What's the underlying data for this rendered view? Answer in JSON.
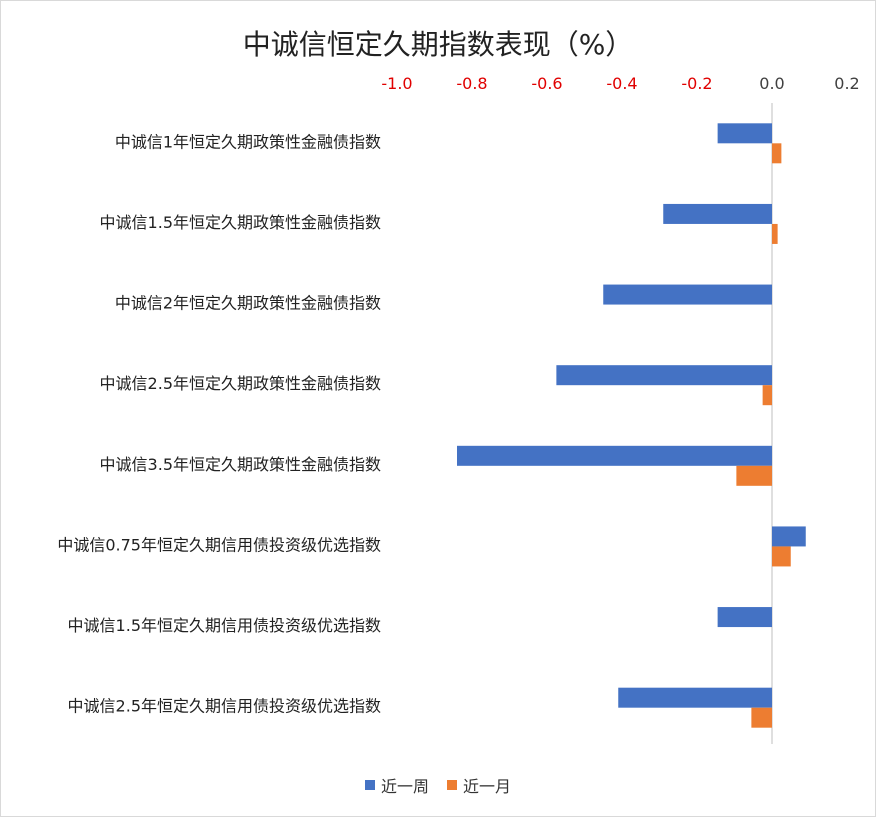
{
  "chart_data": {
    "type": "bar",
    "orientation": "horizontal",
    "title": "中诚信恒定久期指数表现（%）",
    "categories": [
      "中诚信1年恒定久期政策性金融债指数",
      "中诚信1.5年恒定久期政策性金融债指数",
      "中诚信2年恒定久期政策性金融债指数",
      "中诚信2.5年恒定久期政策性金融债指数",
      "中诚信3.5年恒定久期政策性金融债指数",
      "中诚信0.75年恒定久期信用债投资级优选指数",
      "中诚信1.5年恒定久期信用债投资级优选指数",
      "中诚信2.5年恒定久期信用债投资级优选指数"
    ],
    "series": [
      {
        "name": "近一周",
        "color": "#4472c4",
        "values": [
          -0.145,
          -0.29,
          -0.45,
          -0.575,
          -0.84,
          0.09,
          -0.145,
          -0.41
        ]
      },
      {
        "name": "近一月",
        "color": "#ed7d31",
        "values": [
          0.025,
          0.015,
          0.0,
          -0.025,
          -0.095,
          0.05,
          0.0,
          -0.055
        ]
      }
    ],
    "xlim": [
      -1.0,
      0.2
    ],
    "xticks": [
      "-1.0",
      "-0.8",
      "-0.6",
      "-0.4",
      "-0.2",
      "0.0",
      "0.2"
    ],
    "axis_position": "top",
    "negative_tick_color": "#e00000",
    "grid": false,
    "legend": "bottom"
  }
}
